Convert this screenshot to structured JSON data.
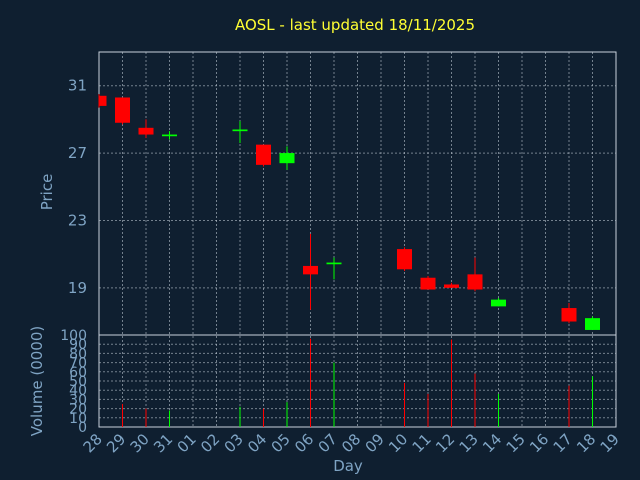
{
  "chart_data": {
    "type": "candlestick",
    "title": "AOSL - last updated 18/11/2025",
    "xlabel": "Day",
    "price_panel": {
      "ylabel": "Price",
      "ylim": [
        16.2,
        33
      ],
      "yticks": [
        19,
        23,
        27,
        31
      ],
      "grid": true
    },
    "volume_panel": {
      "ylabel": "Volume (0000)",
      "ylim": [
        0,
        100
      ],
      "yticks": [
        0,
        10,
        20,
        30,
        40,
        50,
        60,
        70,
        80,
        90,
        100
      ],
      "grid": true
    },
    "x_ticks": [
      "28",
      "29",
      "30",
      "31",
      "01",
      "02",
      "03",
      "04",
      "05",
      "06",
      "07",
      "08",
      "09",
      "10",
      "11",
      "12",
      "13",
      "14",
      "15",
      "16",
      "17",
      "18",
      "19"
    ],
    "colors": {
      "up": "#00ff00",
      "down": "#ff0000",
      "background": "#0f1f30",
      "title": "#ffff33",
      "axis_text": "#7fa4c4"
    },
    "candles": [
      {
        "day": "28",
        "open": 30.4,
        "high": 30.5,
        "low": 29.7,
        "close": 29.8,
        "volume": 0
      },
      {
        "day": "29",
        "open": 30.3,
        "high": 30.3,
        "low": 28.7,
        "close": 28.8,
        "volume": 25
      },
      {
        "day": "30",
        "open": 28.5,
        "high": 29.0,
        "low": 27.9,
        "close": 28.1,
        "volume": 20
      },
      {
        "day": "31",
        "open": 28.0,
        "high": 28.3,
        "low": 27.8,
        "close": 28.1,
        "volume": 18
      },
      {
        "day": "03",
        "open": 28.3,
        "high": 28.9,
        "low": 27.6,
        "close": 28.4,
        "volume": 22
      },
      {
        "day": "04",
        "open": 27.5,
        "high": 27.5,
        "low": 26.2,
        "close": 26.3,
        "volume": 20
      },
      {
        "day": "05",
        "open": 26.4,
        "high": 27.4,
        "low": 26.0,
        "close": 27.0,
        "volume": 27
      },
      {
        "day": "06",
        "open": 20.3,
        "high": 22.2,
        "low": 17.7,
        "close": 19.8,
        "volume": 96
      },
      {
        "day": "07",
        "open": 20.4,
        "high": 20.8,
        "low": 19.5,
        "close": 20.5,
        "volume": 70
      },
      {
        "day": "10",
        "open": 21.3,
        "high": 21.4,
        "low": 20.0,
        "close": 20.1,
        "volume": 48
      },
      {
        "day": "11",
        "open": 19.6,
        "high": 19.7,
        "low": 18.9,
        "close": 18.9,
        "volume": 36
      },
      {
        "day": "12",
        "open": 19.2,
        "high": 19.3,
        "low": 19.0,
        "close": 19.0,
        "volume": 95
      },
      {
        "day": "13",
        "open": 19.8,
        "high": 20.8,
        "low": 18.8,
        "close": 18.9,
        "volume": 58
      },
      {
        "day": "14",
        "open": 17.9,
        "high": 18.4,
        "low": 17.9,
        "close": 18.3,
        "volume": 36
      },
      {
        "day": "17",
        "open": 17.8,
        "high": 18.1,
        "low": 16.9,
        "close": 17.0,
        "volume": 45
      },
      {
        "day": "18",
        "open": 16.5,
        "high": 17.3,
        "low": 16.5,
        "close": 17.2,
        "volume": 55
      }
    ]
  }
}
